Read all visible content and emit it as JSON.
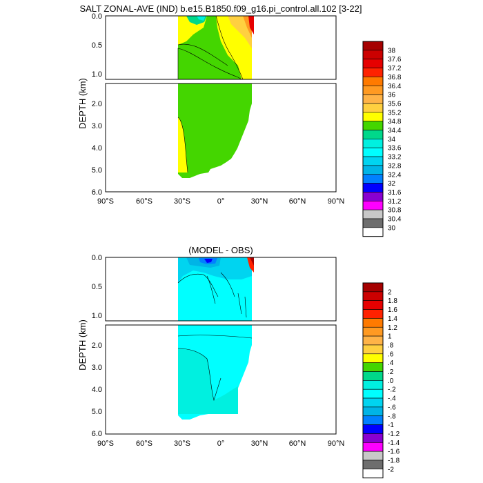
{
  "figure": {
    "title": "SALT ZONAL-AVE (IND) b.e15.B1850.f09_g16.pi_control.all.102 [3-22]"
  },
  "chart_data": [
    {
      "type": "heatmap",
      "title": "SALT ZONAL-AVE (IND) b.e15.B1850.f09_g16.pi_control.all.102 [3-22]",
      "xlabel": "",
      "ylabel": "DEPTH (km)",
      "x_ticks": [
        "90°S",
        "60°S",
        "30°S",
        "0°",
        "30°N",
        "60°N",
        "90°N"
      ],
      "y_ticks_upper": [
        "0.0",
        "0.5",
        "1.0"
      ],
      "y_ticks_lower": [
        "2.0",
        "3.0",
        "4.0",
        "5.0",
        "6.0"
      ],
      "xlim": [
        -90,
        90
      ],
      "ylim_upper": [
        0,
        1.1
      ],
      "ylim_lower": [
        1.1,
        6.0
      ],
      "data_lat_range": [
        -33,
        25
      ],
      "colorbar": {
        "labels": [
          "38",
          "37.6",
          "37.2",
          "36.8",
          "36.4",
          "36",
          "35.6",
          "35.2",
          "34.8",
          "34.4",
          "34",
          "33.6",
          "33.2",
          "32.8",
          "32.4",
          "32",
          "31.6",
          "31.2",
          "30.8",
          "30.4",
          "30"
        ],
        "colors": [
          "#a50000",
          "#cc0000",
          "#e60000",
          "#ff2200",
          "#ff7a00",
          "#ff9a22",
          "#ffb347",
          "#ffd040",
          "#ffff00",
          "#44d600",
          "#00d88a",
          "#00f0e0",
          "#00ffff",
          "#00d4f0",
          "#00b4e6",
          "#0080ff",
          "#0000ff",
          "#8a00d0",
          "#ff00ff",
          "#c8c8c8",
          "#6e6e6e",
          "#ffffff"
        ]
      }
    },
    {
      "type": "heatmap",
      "title": "(MODEL - OBS)",
      "xlabel": "",
      "ylabel": "DEPTH (km)",
      "x_ticks": [
        "90°S",
        "60°S",
        "30°S",
        "0°",
        "30°N",
        "60°N",
        "90°N"
      ],
      "y_ticks_upper": [
        "0.0",
        "0.5",
        "1.0"
      ],
      "y_ticks_lower": [
        "2.0",
        "3.0",
        "4.0",
        "5.0",
        "6.0"
      ],
      "xlim": [
        -90,
        90
      ],
      "ylim_upper": [
        0,
        1.1
      ],
      "ylim_lower": [
        1.1,
        6.0
      ],
      "data_lat_range": [
        -33,
        25
      ],
      "colorbar": {
        "labels": [
          "2",
          "1.8",
          "1.6",
          "1.4",
          "1.2",
          "1",
          ".8",
          ".6",
          ".4",
          ".2",
          ".0",
          "-.2",
          "-.4",
          "-.6",
          "-.8",
          "-1",
          "-1.2",
          "-1.4",
          "-1.6",
          "-1.8",
          "-2"
        ],
        "colors": [
          "#a50000",
          "#cc0000",
          "#e60000",
          "#ff2200",
          "#ff7a00",
          "#ff9a22",
          "#ffb347",
          "#ffd040",
          "#ffff00",
          "#44d600",
          "#00d88a",
          "#00f0e0",
          "#00ffff",
          "#00d4f0",
          "#00b4e6",
          "#0080ff",
          "#0000ff",
          "#8a00d0",
          "#ff00ff",
          "#c8c8c8",
          "#6e6e6e",
          "#ffffff"
        ]
      }
    }
  ]
}
